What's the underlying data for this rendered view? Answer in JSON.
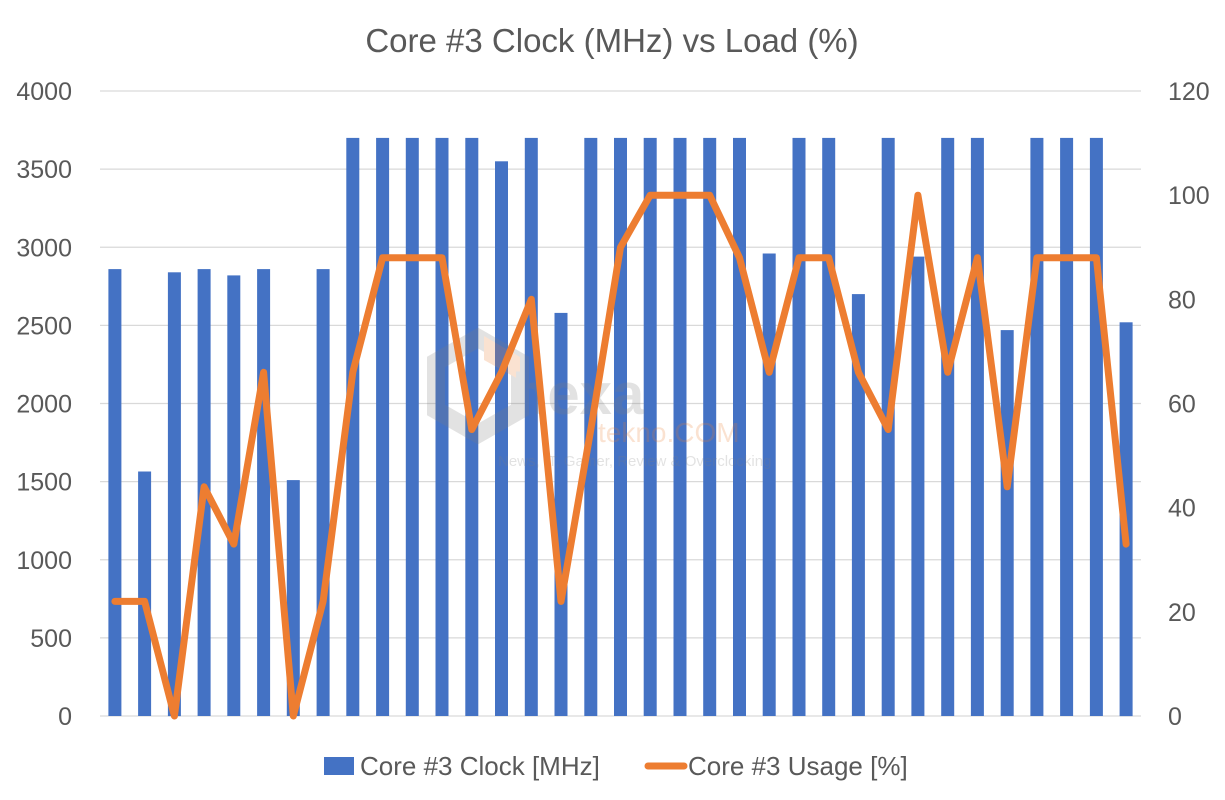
{
  "chart_data": {
    "type": "bar",
    "title": "Core #3 Clock (MHz) vs Load (%)",
    "xlabel": "",
    "ylabel": "",
    "y_left_lim": [
      0,
      4000
    ],
    "y_left_ticks": [
      0,
      500,
      1000,
      1500,
      2000,
      2500,
      3000,
      3500,
      4000
    ],
    "y_right_lim": [
      0,
      120
    ],
    "y_right_ticks": [
      0,
      20,
      40,
      60,
      80,
      100,
      120
    ],
    "grid": true,
    "legend_placement": "bottom",
    "series": [
      {
        "name": "Core #3 Clock [MHz]",
        "type": "bar",
        "axis": "left",
        "color": "#4472C4",
        "values": [
          2860,
          1565,
          2840,
          2860,
          2820,
          2860,
          1510,
          2860,
          3700,
          3700,
          3700,
          3700,
          3700,
          3550,
          3700,
          2580,
          3700,
          3700,
          3700,
          3700,
          3700,
          3700,
          2960,
          3700,
          3700,
          2700,
          3700,
          2940,
          3700,
          3700,
          2470,
          3700,
          3700,
          3700,
          2520
        ]
      },
      {
        "name": "Core #3 Usage [%]",
        "type": "line",
        "axis": "right",
        "color": "#ED7D31",
        "values": [
          22,
          22,
          0,
          44,
          33,
          66,
          0,
          22,
          66,
          88,
          88,
          88,
          55,
          66,
          80,
          22,
          55,
          90,
          100,
          100,
          100,
          88,
          66,
          88,
          88,
          66,
          55,
          100,
          66,
          88,
          44,
          88,
          88,
          88,
          33
        ]
      }
    ]
  },
  "watermark": {
    "name": "hexa",
    "domain": "tekno.COM",
    "tagline": "News, IT, Gamer, Review & Overclocking"
  }
}
